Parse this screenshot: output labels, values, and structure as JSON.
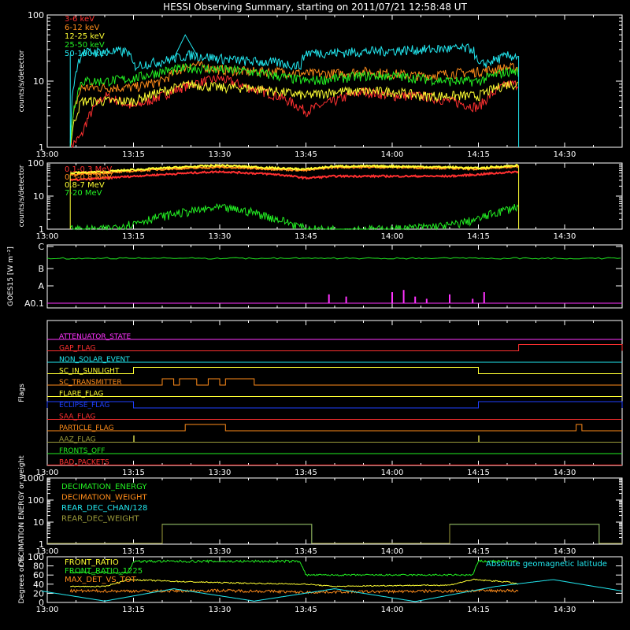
{
  "title": "HESSI Observing Summary, starting on 2011/07/21 12:58:48 UT",
  "colors": {
    "red": "#ff3030",
    "orange": "#ff8c1a",
    "yellow": "#ffff33",
    "green": "#22ee22",
    "cyan": "#22e8f0",
    "magenta": "#ff33ff",
    "blue": "#2040ff",
    "olive": "#9c9c3a",
    "white": "#ffffff"
  },
  "chart_data": [
    {
      "name": "low-energy-count-rates",
      "type": "line",
      "ylabel": "counts/s/detector",
      "yscale": "log",
      "xlim": [
        "13:00",
        "14:40"
      ],
      "ylim": [
        1,
        100
      ],
      "x_ticks": [
        "13:00",
        "13:15",
        "13:30",
        "13:45",
        "14:00",
        "14:15",
        "14:30"
      ],
      "y_ticks": [
        "1",
        "10",
        "100"
      ],
      "data_start": "13:04",
      "data_end": "14:22",
      "series": [
        {
          "name": "3-6 keV",
          "color": "#ff3030",
          "x": [
            "13:04",
            "13:06",
            "13:10",
            "13:15",
            "13:20",
            "13:25",
            "13:30",
            "13:35",
            "13:40",
            "13:45",
            "13:50",
            "13:55",
            "14:00",
            "14:05",
            "14:10",
            "14:15",
            "14:20",
            "14:22"
          ],
          "y": [
            1,
            1.5,
            6,
            4,
            6,
            9,
            11,
            8,
            6,
            3.5,
            5,
            7,
            6,
            6,
            5,
            4,
            9,
            9
          ]
        },
        {
          "name": "6-12 keV",
          "color": "#ff8c1a",
          "x": [
            "13:04",
            "13:06",
            "13:10",
            "13:15",
            "13:20",
            "13:25",
            "13:30",
            "13:35",
            "13:40",
            "13:45",
            "13:50",
            "13:55",
            "14:00",
            "14:05",
            "14:10",
            "14:15",
            "14:20",
            "14:22"
          ],
          "y": [
            1,
            8,
            8,
            8,
            10,
            18,
            15,
            14,
            14,
            13,
            13,
            14,
            13,
            12,
            13,
            14,
            16,
            16
          ]
        },
        {
          "name": "12-25 keV",
          "color": "#ffff33",
          "x": [
            "13:04",
            "13:06",
            "13:10",
            "13:15",
            "13:20",
            "13:25",
            "13:30",
            "13:35",
            "13:40",
            "13:45",
            "13:50",
            "13:55",
            "14:00",
            "14:05",
            "14:10",
            "14:15",
            "14:20",
            "14:22"
          ],
          "y": [
            1,
            5,
            5,
            5,
            7,
            9,
            8,
            8,
            7,
            6,
            7,
            7,
            7,
            6,
            6,
            6,
            9,
            9
          ]
        },
        {
          "name": "25-50 keV",
          "color": "#22ee22",
          "x": [
            "13:04",
            "13:06",
            "13:10",
            "13:15",
            "13:20",
            "13:25",
            "13:30",
            "13:35",
            "13:40",
            "13:45",
            "13:50",
            "13:55",
            "14:00",
            "14:05",
            "14:10",
            "14:15",
            "14:20",
            "14:22"
          ],
          "y": [
            1,
            10,
            10,
            11,
            14,
            16,
            15,
            14,
            12,
            10,
            11,
            12,
            12,
            11,
            10,
            10,
            14,
            14
          ]
        },
        {
          "name": "50-100 keV",
          "color": "#22e8f0",
          "x": [
            "13:04",
            "13:06",
            "13:10",
            "13:14",
            "13:15",
            "13:20",
            "13:25",
            "13:30",
            "13:35",
            "13:40",
            "13:44",
            "13:45",
            "13:50",
            "13:55",
            "14:00",
            "14:05",
            "14:10",
            "14:14",
            "14:15",
            "14:20",
            "14:22"
          ],
          "y": [
            1,
            27,
            28,
            28,
            17,
            20,
            25,
            22,
            20,
            19,
            17,
            27,
            27,
            28,
            29,
            30,
            31,
            31,
            17,
            24,
            24
          ]
        }
      ]
    },
    {
      "name": "high-energy-count-rates",
      "type": "line",
      "ylabel": "counts/s/detector",
      "yscale": "log",
      "xlim": [
        "13:00",
        "14:40"
      ],
      "ylim": [
        1,
        100
      ],
      "x_ticks": [
        "13:00",
        "13:15",
        "13:30",
        "13:45",
        "14:00",
        "14:15",
        "14:30"
      ],
      "y_ticks": [
        "1",
        "10",
        "100"
      ],
      "series": [
        {
          "name": "0.1-0.3 MeV",
          "color": "#ff3030",
          "x": [
            "13:04",
            "13:10",
            "13:20",
            "13:30",
            "13:40",
            "13:45",
            "13:50",
            "14:00",
            "14:10",
            "14:15",
            "14:22"
          ],
          "y": [
            30,
            35,
            45,
            55,
            45,
            35,
            40,
            40,
            40,
            45,
            55
          ]
        },
        {
          "name": "0.3-0.8 MeV",
          "color": "#ff8c1a",
          "x": [
            "13:04",
            "13:10",
            "13:20",
            "13:30",
            "13:40",
            "13:45",
            "13:50",
            "14:00",
            "14:10",
            "14:15",
            "14:22"
          ],
          "y": [
            45,
            50,
            65,
            75,
            65,
            60,
            75,
            75,
            70,
            65,
            80
          ]
        },
        {
          "name": "0.8-7 MeV",
          "color": "#ffff33",
          "x": [
            "13:04",
            "13:10",
            "13:20",
            "13:30",
            "13:40",
            "13:45",
            "13:50",
            "14:00",
            "14:10",
            "14:15",
            "14:22"
          ],
          "y": [
            50,
            55,
            70,
            85,
            70,
            65,
            80,
            80,
            75,
            70,
            85
          ]
        },
        {
          "name": "7-20 MeV",
          "color": "#22ee22",
          "x": [
            "13:04",
            "13:10",
            "13:15",
            "13:20",
            "13:25",
            "13:30",
            "13:35",
            "13:40",
            "13:45",
            "13:50",
            "14:00",
            "14:10",
            "14:15",
            "14:20",
            "14:22"
          ],
          "y": [
            1,
            1,
            1.5,
            2.5,
            3.5,
            4.5,
            3.5,
            2,
            1,
            1,
            1,
            1.3,
            2,
            4,
            5
          ]
        }
      ]
    },
    {
      "name": "goes-flux",
      "type": "line",
      "ylabel": "GOES15 [W m⁻²]",
      "xlim": [
        "13:00",
        "14:40"
      ],
      "y_ticks": [
        "A0.1",
        "A",
        "B",
        "C"
      ],
      "series": [
        {
          "name": "",
          "color": "#22ee22",
          "level": "between B and C"
        },
        {
          "name": "",
          "color": "#ff33ff",
          "type": "bar",
          "x": [
            "13:49",
            "13:52",
            "14:00",
            "14:02",
            "14:04",
            "14:06",
            "14:10",
            "14:14",
            "14:16"
          ],
          "y": [
            0.4,
            0.3,
            0.5,
            0.6,
            0.3,
            0.2,
            0.4,
            0.2,
            0.5
          ]
        }
      ]
    },
    {
      "name": "flags",
      "type": "step",
      "ylabel": "Flags",
      "xlim": [
        "13:00",
        "14:40"
      ],
      "x_ticks": [
        "13:00",
        "13:15",
        "13:30",
        "13:45",
        "14:00",
        "14:15",
        "14:30"
      ],
      "series": [
        {
          "name": "ATTENUATOR_STATE",
          "color": "#ff33ff",
          "segments": []
        },
        {
          "name": "GAP_FLAG",
          "color": "#ff3030",
          "segments": [
            [
              "14:22",
              "14:40"
            ]
          ]
        },
        {
          "name": "NON_SOLAR_EVENT",
          "color": "#22e8f0",
          "segments": []
        },
        {
          "name": "SC_IN_SUNLIGHT",
          "color": "#ffff33",
          "segments": [
            [
              "13:15",
              "14:15"
            ]
          ]
        },
        {
          "name": "SC_TRANSMITTER",
          "color": "#ff8c1a",
          "segments": [
            [
              "13:20",
              "13:22"
            ],
            [
              "13:23",
              "13:26"
            ],
            [
              "13:28",
              "13:30"
            ],
            [
              "13:31",
              "13:36"
            ]
          ]
        },
        {
          "name": "FLARE_FLAG",
          "color": "#ffff33",
          "segments": []
        },
        {
          "name": "ECLIPSE_FLAG",
          "color": "#2040ff",
          "segments": [
            [
              "13:00",
              "13:15"
            ],
            [
              "14:15",
              "14:40"
            ]
          ]
        },
        {
          "name": "SAA_FLAG",
          "color": "#ff3030",
          "segments": []
        },
        {
          "name": "PARTICLE_FLAG",
          "color": "#ff8c1a",
          "segments": [
            [
              "13:24",
              "13:31"
            ],
            [
              "14:32",
              "14:33"
            ]
          ]
        },
        {
          "name": "AAZ_FLAG",
          "color": "#9c9c3a",
          "segments": [
            [
              "13:15",
              "13:15"
            ],
            [
              "14:15",
              "14:15"
            ]
          ]
        },
        {
          "name": "FRONTS_OFF",
          "color": "#22ee22",
          "segments": []
        },
        {
          "name": "BAD_PACKETS",
          "color": "#ff3030",
          "segments": []
        }
      ]
    },
    {
      "name": "decimation",
      "type": "step",
      "ylabel": "DECIMATION ENERGY or weight",
      "yscale": "log",
      "xlim": [
        "13:00",
        "14:40"
      ],
      "ylim": [
        1,
        1000
      ],
      "x_ticks": [
        "13:00",
        "13:15",
        "13:30",
        "13:45",
        "14:00",
        "14:15",
        "14:30"
      ],
      "y_ticks": [
        "1",
        "10",
        "100",
        "1000"
      ],
      "series": [
        {
          "name": "DECIMATION_ENERGY",
          "color": "#22ee22",
          "segments": []
        },
        {
          "name": "DECIMATION_WEIGHT",
          "color": "#ff8c1a",
          "segments": []
        },
        {
          "name": "REAR_DEC_CHAN/128",
          "color": "#22e8f0",
          "value": 8,
          "segments": [
            [
              "13:20",
              "13:46"
            ],
            [
              "14:10",
              "14:36"
            ]
          ]
        },
        {
          "name": "REAR_DEC_WEIGHT",
          "color": "#9c9c3a",
          "value": 8,
          "segments": [
            [
              "13:20",
              "13:46"
            ],
            [
              "14:10",
              "14:36"
            ]
          ]
        }
      ]
    },
    {
      "name": "ratios",
      "type": "line",
      "ylabel": "Degrees or %",
      "xlim": [
        "13:00",
        "14:40"
      ],
      "ylim": [
        0,
        100
      ],
      "x_ticks": [
        "13:00",
        "13:15",
        "13:30",
        "13:45",
        "14:00",
        "14:15",
        "14:30"
      ],
      "y_ticks": [
        "0",
        "20",
        "40",
        "60",
        "80",
        "100"
      ],
      "series": [
        {
          "name": "FRONT_RATIO",
          "color": "#ffff33",
          "x": [
            "13:04",
            "13:10",
            "13:14",
            "13:25",
            "13:35",
            "13:45",
            "13:50",
            "14:00",
            "14:10",
            "14:14",
            "14:20",
            "14:22"
          ],
          "y": [
            35,
            35,
            50,
            45,
            42,
            40,
            35,
            37,
            38,
            50,
            45,
            40
          ]
        },
        {
          "name": "FRONT_RATIO_1225",
          "color": "#22ee22",
          "x": [
            "13:04",
            "13:14",
            "13:15",
            "13:30",
            "13:44",
            "13:45",
            "14:00",
            "14:10",
            "14:14",
            "14:15",
            "14:22"
          ],
          "y": [
            65,
            65,
            90,
            90,
            90,
            60,
            60,
            60,
            60,
            90,
            90
          ]
        },
        {
          "name": "MAX_DET_VS_TOT",
          "color": "#ff8c1a",
          "x": [
            "13:04",
            "13:14",
            "13:20",
            "13:30",
            "13:40",
            "13:45",
            "13:50",
            "14:00",
            "14:10",
            "14:20",
            "14:22"
          ],
          "y": [
            25,
            25,
            25,
            26,
            24,
            22,
            23,
            24,
            25,
            26,
            25
          ]
        },
        {
          "name": "Absolute geomagnetic latitude",
          "color": "#22e8f0",
          "x": [
            "12:59",
            "13:10",
            "13:22",
            "13:36",
            "13:50",
            "14:04",
            "14:18",
            "14:28",
            "14:40"
          ],
          "y": [
            25,
            3,
            30,
            3,
            30,
            2,
            35,
            50,
            25
          ]
        }
      ]
    }
  ]
}
